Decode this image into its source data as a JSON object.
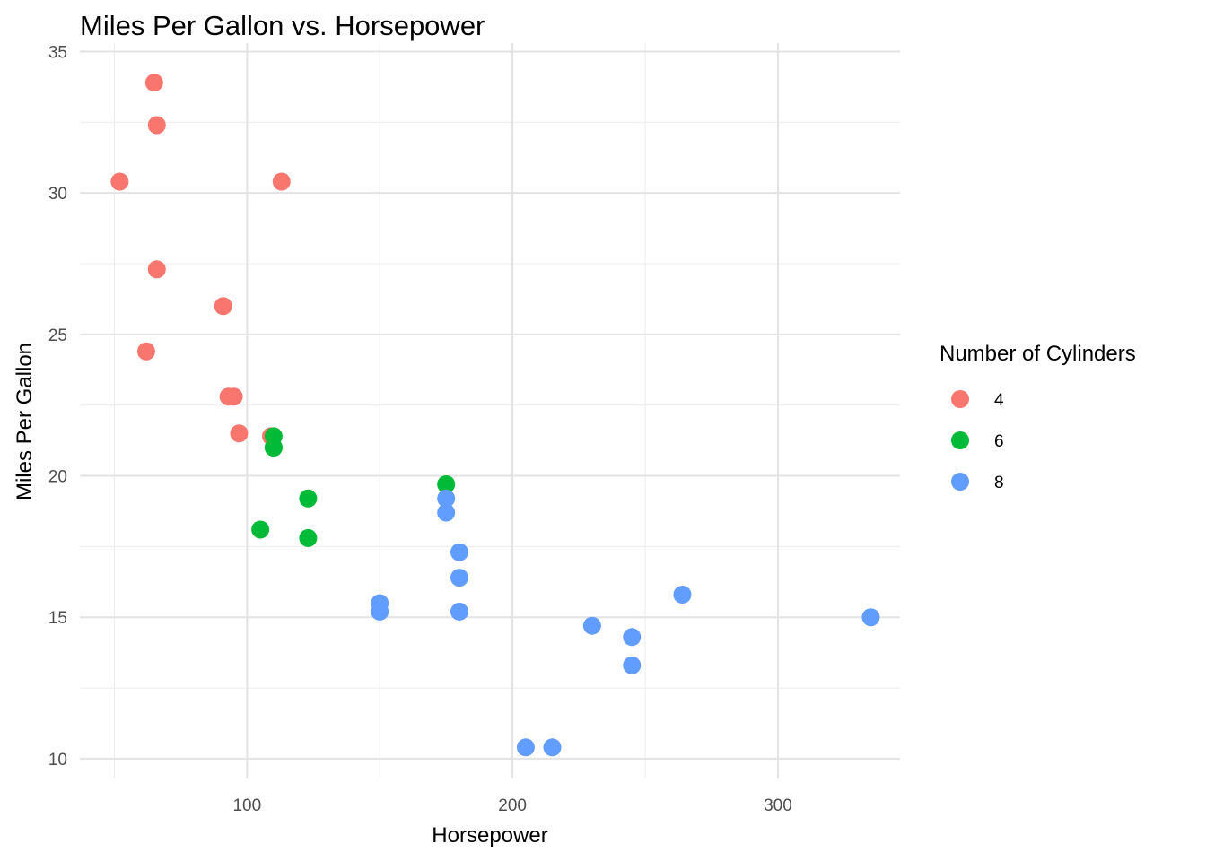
{
  "chart_data": {
    "type": "scatter",
    "title": "Miles Per Gallon vs. Horsepower",
    "xlabel": "Horsepower",
    "ylabel": "Miles Per Gallon",
    "xlim": [
      37,
      346
    ],
    "ylim": [
      9.3,
      35.3
    ],
    "x_ticks": [
      100,
      200,
      300
    ],
    "x_minor_ticks": [
      50,
      150,
      250
    ],
    "y_ticks": [
      10,
      15,
      20,
      25,
      30,
      35
    ],
    "y_minor_ticks": [
      12.5,
      17.5,
      22.5,
      27.5,
      32.5
    ],
    "grid": true,
    "legend": {
      "title": "Number of Cylinders",
      "position": "right"
    },
    "series": [
      {
        "name": "4",
        "color": "#F8766D",
        "points": [
          [
            93,
            22.8
          ],
          [
            62,
            24.4
          ],
          [
            95,
            22.8
          ],
          [
            66,
            32.4
          ],
          [
            52,
            30.4
          ],
          [
            65,
            33.9
          ],
          [
            97,
            21.5
          ],
          [
            66,
            27.3
          ],
          [
            91,
            26.0
          ],
          [
            113,
            30.4
          ],
          [
            109,
            21.4
          ]
        ]
      },
      {
        "name": "6",
        "color": "#00BA38",
        "points": [
          [
            110,
            21.0
          ],
          [
            110,
            21.0
          ],
          [
            110,
            21.4
          ],
          [
            105,
            18.1
          ],
          [
            123,
            19.2
          ],
          [
            123,
            17.8
          ],
          [
            175,
            19.7
          ]
        ]
      },
      {
        "name": "8",
        "color": "#619CFF",
        "points": [
          [
            175,
            18.7
          ],
          [
            245,
            14.3
          ],
          [
            180,
            16.4
          ],
          [
            180,
            17.3
          ],
          [
            180,
            15.2
          ],
          [
            205,
            10.4
          ],
          [
            215,
            10.4
          ],
          [
            230,
            14.7
          ],
          [
            150,
            15.5
          ],
          [
            150,
            15.2
          ],
          [
            245,
            13.3
          ],
          [
            175,
            19.2
          ],
          [
            264,
            15.8
          ],
          [
            335,
            15.0
          ]
        ]
      }
    ]
  }
}
